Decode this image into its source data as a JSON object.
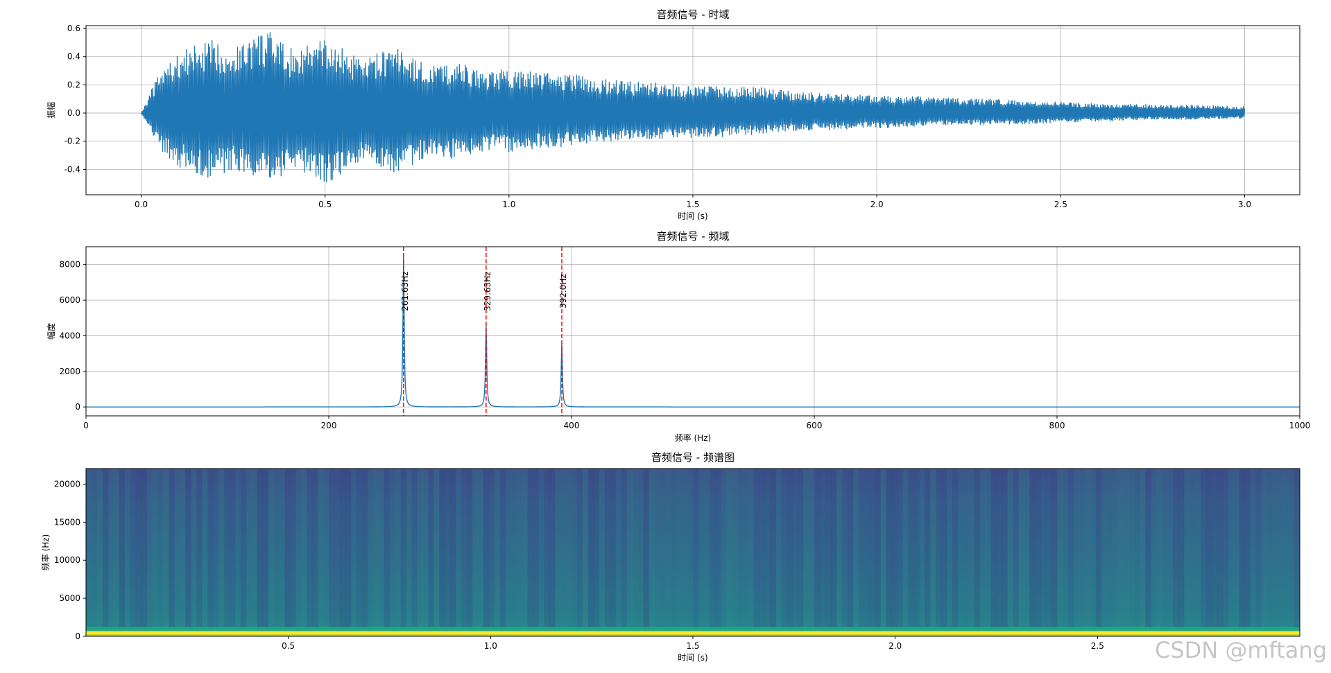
{
  "chart_data": [
    {
      "type": "line",
      "title": "音频信号 - 时域",
      "xlabel": "时间 (s)",
      "ylabel": "振幅",
      "xlim": [
        -0.15,
        3.15
      ],
      "ylim": [
        -0.58,
        0.62
      ],
      "xticks": [
        "0.0",
        "0.5",
        "1.0",
        "1.5",
        "2.0",
        "2.5",
        "3.0"
      ],
      "yticks": [
        "-0.4",
        "-0.2",
        "0.0",
        "0.2",
        "0.4",
        "0.6"
      ],
      "grid": true,
      "color": "#1f77b4",
      "series": [
        {
          "x": [
            0.0,
            0.05,
            0.1,
            0.15,
            0.2,
            0.25,
            0.3,
            0.35,
            0.4,
            0.45,
            0.5,
            0.55,
            0.6,
            0.65,
            0.7,
            0.75,
            0.8,
            0.85,
            0.9,
            0.95,
            1.0,
            1.1,
            1.2,
            1.3,
            1.4,
            1.5,
            1.6,
            1.7,
            1.8,
            1.9,
            2.0,
            2.2,
            2.4,
            2.6,
            2.8,
            3.0
          ],
          "envelope_upper": [
            0.0,
            0.3,
            0.42,
            0.5,
            0.52,
            0.47,
            0.56,
            0.58,
            0.46,
            0.5,
            0.53,
            0.46,
            0.37,
            0.44,
            0.47,
            0.38,
            0.34,
            0.37,
            0.33,
            0.29,
            0.32,
            0.29,
            0.27,
            0.23,
            0.22,
            0.2,
            0.2,
            0.18,
            0.15,
            0.14,
            0.13,
            0.11,
            0.09,
            0.07,
            0.06,
            0.05
          ],
          "envelope_lower": [
            0.0,
            -0.26,
            -0.38,
            -0.46,
            -0.47,
            -0.4,
            -0.45,
            -0.51,
            -0.44,
            -0.42,
            -0.51,
            -0.44,
            -0.35,
            -0.4,
            -0.43,
            -0.35,
            -0.3,
            -0.33,
            -0.29,
            -0.26,
            -0.28,
            -0.25,
            -0.23,
            -0.2,
            -0.19,
            -0.18,
            -0.17,
            -0.15,
            -0.13,
            -0.12,
            -0.11,
            -0.09,
            -0.08,
            -0.06,
            -0.05,
            -0.04
          ]
        }
      ]
    },
    {
      "type": "line",
      "title": "音频信号 - 频域",
      "xlabel": "频率 (Hz)",
      "ylabel": "幅度",
      "xlim": [
        0,
        1000
      ],
      "ylim": [
        -500,
        9000
      ],
      "xticks": [
        "0",
        "200",
        "400",
        "600",
        "800",
        "1000"
      ],
      "yticks": [
        "0",
        "2000",
        "4000",
        "6000",
        "8000"
      ],
      "grid": true,
      "color": "#1f77b4",
      "peaks": [
        {
          "freq": 261.63,
          "amplitude": 8600,
          "label": "261.63Hz"
        },
        {
          "freq": 329.63,
          "amplitude": 4700,
          "label": "329.63Hz"
        },
        {
          "freq": 392.0,
          "amplitude": 3600,
          "label": "392.0Hz"
        }
      ],
      "marker_color": "#ff0000",
      "label_y": 6500
    },
    {
      "type": "heatmap",
      "title": "音频信号 - 频谱图",
      "xlabel": "时间 (s)",
      "ylabel": "频率 (Hz)",
      "xlim": [
        0.0,
        3.0
      ],
      "ylim": [
        0,
        22050
      ],
      "xticks": [
        "0.5",
        "1.0",
        "1.5",
        "2.0",
        "2.5"
      ],
      "yticks": [
        "0",
        "5000",
        "10000",
        "15000",
        "20000"
      ],
      "colormap": "viridis",
      "band_freq": 400
    }
  ],
  "watermark": "CSDN @mftang"
}
